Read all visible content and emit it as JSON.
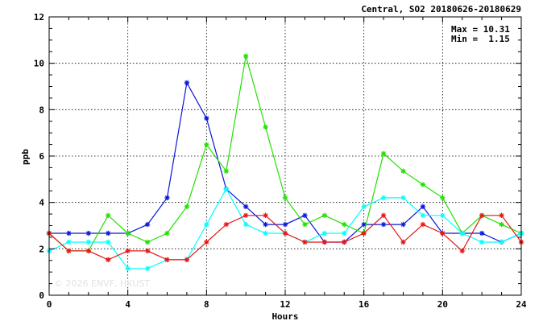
{
  "chart_data": {
    "type": "line",
    "title": "Central, SO2 20180626-20180629",
    "xlabel": "Hours",
    "ylabel": "ppb",
    "xlim": [
      0,
      24
    ],
    "ylim": [
      0,
      12
    ],
    "xticks": [
      0,
      4,
      8,
      12,
      16,
      20,
      24
    ],
    "yticks": [
      0,
      2,
      4,
      6,
      8,
      10,
      12
    ],
    "grid": true,
    "stats": {
      "max_label": "Max = 10.31",
      "min_label": "Min =  1.15"
    },
    "watermark": "© 2026  ENVF, HKUST",
    "x": [
      0,
      1,
      2,
      3,
      4,
      5,
      6,
      7,
      8,
      9,
      10,
      11,
      12,
      13,
      14,
      15,
      16,
      17,
      18,
      19,
      20,
      21,
      22,
      23,
      24
    ],
    "series": [
      {
        "color": "#0a17d8",
        "values": [
          2.67,
          2.67,
          2.67,
          2.67,
          2.67,
          3.05,
          4.2,
          9.16,
          7.63,
          4.58,
          3.82,
          3.05,
          3.05,
          3.44,
          2.29,
          2.29,
          3.05,
          3.05,
          3.05,
          3.82,
          2.67,
          2.67,
          2.67,
          2.29,
          2.67
        ]
      },
      {
        "color": "#22e000",
        "values": [
          2.67,
          1.91,
          1.91,
          3.44,
          2.67,
          2.29,
          2.67,
          3.82,
          6.49,
          5.35,
          10.31,
          7.25,
          4.2,
          3.05,
          3.44,
          3.05,
          2.67,
          6.11,
          5.35,
          4.77,
          4.2,
          2.67,
          3.44,
          3.05,
          2.67
        ]
      },
      {
        "color": "#00ffff",
        "values": [
          1.91,
          2.29,
          2.29,
          2.29,
          1.15,
          1.15,
          1.53,
          1.53,
          3.05,
          4.58,
          3.05,
          2.67,
          2.67,
          2.29,
          2.67,
          2.67,
          3.82,
          4.2,
          4.2,
          3.44,
          3.44,
          2.67,
          2.29,
          2.29,
          2.67
        ]
      },
      {
        "color": "#e81515",
        "values": [
          2.67,
          1.91,
          1.91,
          1.53,
          1.91,
          1.91,
          1.53,
          1.53,
          2.29,
          3.05,
          3.44,
          3.44,
          2.67,
          2.29,
          2.29,
          2.29,
          2.67,
          3.44,
          2.29,
          3.05,
          2.67,
          1.91,
          3.44,
          3.44,
          2.29
        ]
      }
    ]
  }
}
